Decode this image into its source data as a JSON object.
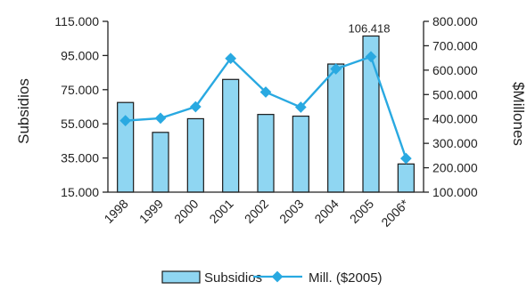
{
  "chart_data": {
    "type": "bar",
    "title": "",
    "categories": [
      "1998",
      "1999",
      "2000",
      "2001",
      "2002",
      "2003",
      "2004",
      "2005",
      "2006*"
    ],
    "series": [
      {
        "name": "Subsidios",
        "type": "bar",
        "axis": "left",
        "values": [
          67500,
          50000,
          58000,
          81000,
          60500,
          59500,
          90000,
          106418,
          31500
        ]
      },
      {
        "name": "Mill. ($2005)",
        "type": "line",
        "axis": "right",
        "values": [
          393000,
          403000,
          450000,
          648000,
          510000,
          448000,
          605000,
          655000,
          238000
        ]
      }
    ],
    "y_left": {
      "label": "Subsidios",
      "lim": [
        15000,
        115000
      ],
      "ticks": [
        15000,
        35000,
        55000,
        75000,
        95000,
        115000
      ],
      "tick_labels": [
        "15.000",
        "35.000",
        "55.000",
        "75.000",
        "95.000",
        "115.000"
      ]
    },
    "y_right": {
      "label": "$Millones",
      "lim": [
        100000,
        800000
      ],
      "ticks": [
        100000,
        200000,
        300000,
        400000,
        500000,
        600000,
        700000,
        800000
      ],
      "tick_labels": [
        "100.000",
        "200.000",
        "300.000",
        "400.000",
        "500.000",
        "600.000",
        "700.000",
        "800.000"
      ]
    },
    "annotations": [
      {
        "category": "2005",
        "series": "Subsidios",
        "text": "106.418"
      }
    ],
    "grid": false,
    "legend": {
      "placement": "bottom",
      "entries": [
        "Subsidios",
        "Mill. ($2005)"
      ]
    },
    "colors": {
      "bar_fill": "#8fd6f2",
      "bar_stroke": "#1a1a1a",
      "line": "#29a9e1",
      "axis": "#222222"
    }
  }
}
